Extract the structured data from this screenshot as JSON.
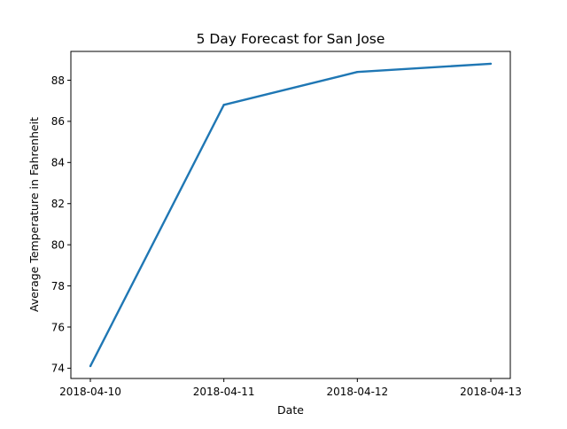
{
  "chart_data": {
    "type": "line",
    "title": "5 Day Forecast for San Jose",
    "xlabel": "Date",
    "ylabel": "Average Temperature in Fahrenheit",
    "x": [
      "2018-04-10",
      "2018-04-11",
      "2018-04-12",
      "2018-04-13"
    ],
    "series": [
      {
        "values": [
          74.1,
          86.8,
          88.4,
          88.8
        ],
        "color": "#1f77b4"
      }
    ],
    "yticks": [
      74,
      76,
      78,
      80,
      82,
      84,
      86,
      88
    ],
    "ylim": [
      73.5,
      89.4
    ],
    "grid": false,
    "legend": "none"
  }
}
